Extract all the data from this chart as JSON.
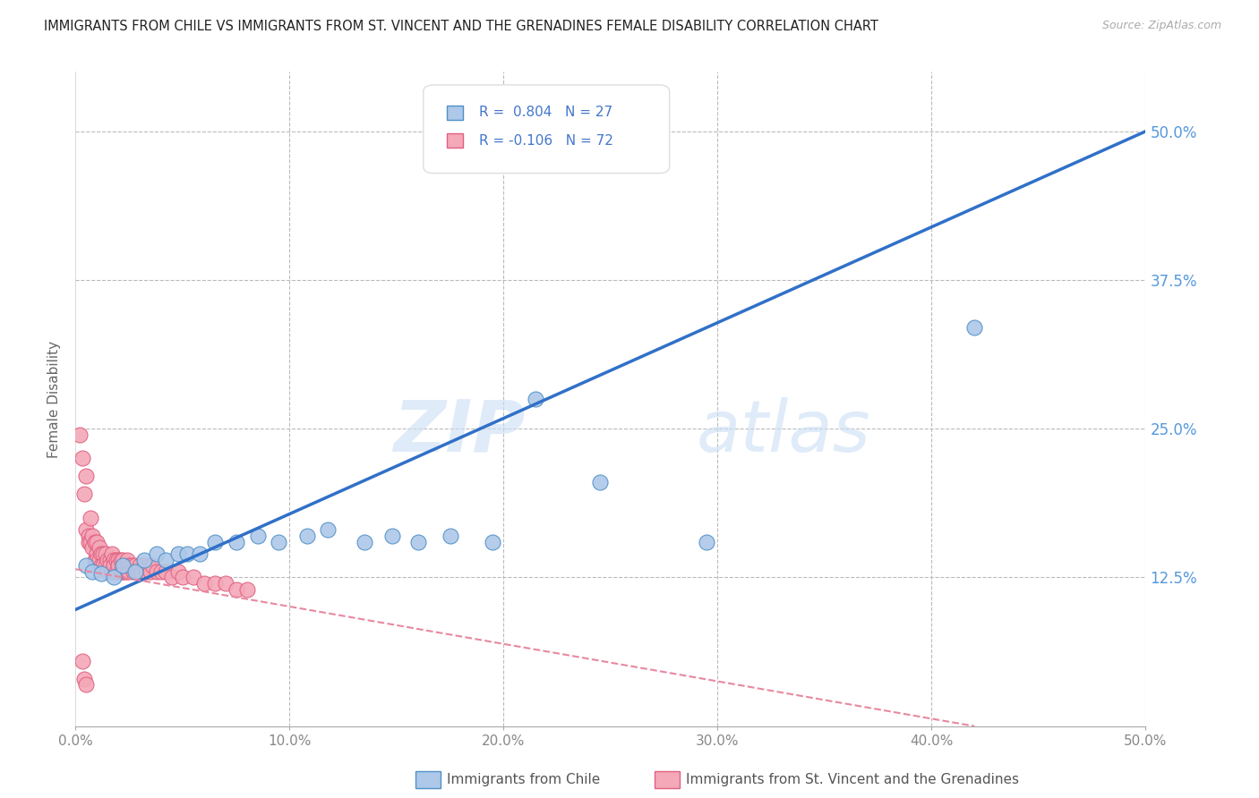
{
  "title": "IMMIGRANTS FROM CHILE VS IMMIGRANTS FROM ST. VINCENT AND THE GRENADINES FEMALE DISABILITY CORRELATION CHART",
  "source": "Source: ZipAtlas.com",
  "ylabel": "Female Disability",
  "watermark_zip": "ZIP",
  "watermark_atlas": "atlas",
  "legend_label_1": "Immigrants from Chile",
  "legend_label_2": "Immigrants from St. Vincent and the Grenadines",
  "r1": 0.804,
  "n1": 27,
  "r2": -0.106,
  "n2": 72,
  "color_chile_fill": "#adc8e8",
  "color_chile_edge": "#5090c8",
  "color_svg_fill": "#f4a8b8",
  "color_svg_edge": "#e06080",
  "color_chile_line": "#3070c8",
  "color_svg_line": "#e888a0",
  "yticks": [
    0.0,
    0.125,
    0.25,
    0.375,
    0.5
  ],
  "ytick_labels_right": [
    "",
    "12.5%",
    "25.0%",
    "37.5%",
    "50.0%"
  ],
  "xlim": [
    0.0,
    0.5
  ],
  "ylim": [
    0.0,
    0.55
  ],
  "chile_line_x": [
    0.0,
    0.5
  ],
  "chile_line_y": [
    0.098,
    0.5
  ],
  "svg_line_x": [
    0.0,
    0.42
  ],
  "svg_line_y": [
    0.132,
    0.0
  ],
  "chile_scatter_x": [
    0.005,
    0.008,
    0.012,
    0.018,
    0.022,
    0.028,
    0.032,
    0.038,
    0.042,
    0.048,
    0.052,
    0.058,
    0.065,
    0.075,
    0.085,
    0.095,
    0.108,
    0.118,
    0.135,
    0.148,
    0.16,
    0.175,
    0.195,
    0.215,
    0.245,
    0.295,
    0.42
  ],
  "chile_scatter_y": [
    0.135,
    0.13,
    0.128,
    0.125,
    0.135,
    0.13,
    0.14,
    0.145,
    0.14,
    0.145,
    0.145,
    0.145,
    0.155,
    0.155,
    0.16,
    0.155,
    0.16,
    0.165,
    0.155,
    0.16,
    0.155,
    0.16,
    0.155,
    0.275,
    0.205,
    0.155,
    0.335
  ],
  "svg_scatter_x": [
    0.002,
    0.003,
    0.004,
    0.005,
    0.005,
    0.006,
    0.006,
    0.007,
    0.007,
    0.008,
    0.008,
    0.009,
    0.009,
    0.01,
    0.01,
    0.01,
    0.011,
    0.011,
    0.012,
    0.012,
    0.013,
    0.013,
    0.014,
    0.014,
    0.015,
    0.015,
    0.016,
    0.016,
    0.017,
    0.017,
    0.018,
    0.018,
    0.019,
    0.019,
    0.02,
    0.02,
    0.021,
    0.021,
    0.022,
    0.022,
    0.023,
    0.023,
    0.024,
    0.024,
    0.025,
    0.025,
    0.026,
    0.027,
    0.028,
    0.029,
    0.03,
    0.031,
    0.032,
    0.033,
    0.034,
    0.035,
    0.036,
    0.038,
    0.04,
    0.042,
    0.045,
    0.048,
    0.05,
    0.055,
    0.06,
    0.065,
    0.07,
    0.075,
    0.08,
    0.003,
    0.004,
    0.005
  ],
  "svg_scatter_y": [
    0.245,
    0.225,
    0.195,
    0.21,
    0.165,
    0.16,
    0.155,
    0.175,
    0.155,
    0.16,
    0.15,
    0.155,
    0.14,
    0.155,
    0.145,
    0.14,
    0.15,
    0.14,
    0.145,
    0.135,
    0.145,
    0.135,
    0.145,
    0.135,
    0.14,
    0.13,
    0.14,
    0.135,
    0.145,
    0.13,
    0.14,
    0.135,
    0.14,
    0.13,
    0.14,
    0.135,
    0.13,
    0.14,
    0.13,
    0.14,
    0.135,
    0.13,
    0.14,
    0.13,
    0.135,
    0.13,
    0.135,
    0.13,
    0.135,
    0.13,
    0.135,
    0.13,
    0.135,
    0.13,
    0.135,
    0.13,
    0.135,
    0.13,
    0.13,
    0.13,
    0.125,
    0.13,
    0.125,
    0.125,
    0.12,
    0.12,
    0.12,
    0.115,
    0.115,
    0.055,
    0.04,
    0.035
  ]
}
